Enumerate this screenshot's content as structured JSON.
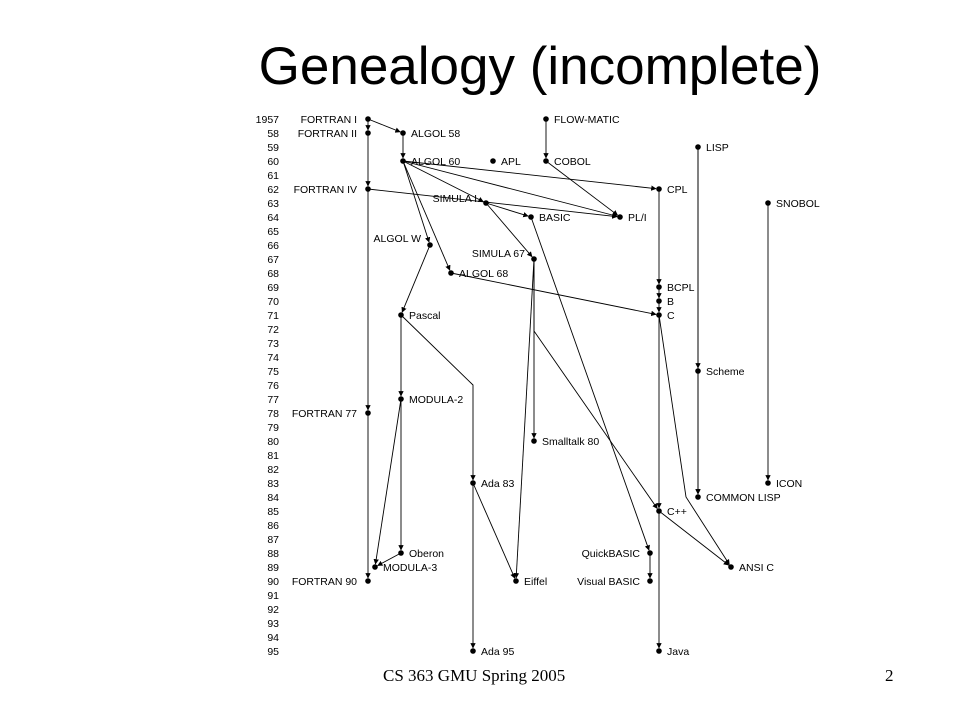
{
  "slide": {
    "title": "Genealogy (incomplete)",
    "footer": "CS 363 GMU Spring 2005",
    "page_number": "2"
  },
  "timeline": {
    "first_year_label": "1957",
    "short_year_labels": [
      "58",
      "59",
      "60",
      "61",
      "62",
      "63",
      "64",
      "65",
      "66",
      "67",
      "68",
      "69",
      "70",
      "71",
      "72",
      "73",
      "74",
      "75",
      "76",
      "77",
      "78",
      "79",
      "80",
      "81",
      "82",
      "83",
      "84",
      "85",
      "86",
      "87",
      "88",
      "89",
      "90",
      "91",
      "92",
      "93",
      "94",
      "95"
    ]
  },
  "languages": [
    {
      "id": "fortran1",
      "name": "FORTRAN I",
      "year": 1957
    },
    {
      "id": "fortran2",
      "name": "FORTRAN II",
      "year": 1958
    },
    {
      "id": "algol58",
      "name": "ALGOL 58",
      "year": 1958
    },
    {
      "id": "flowmatic",
      "name": "FLOW-MATIC",
      "year": 1957
    },
    {
      "id": "lisp",
      "name": "LISP",
      "year": 1959
    },
    {
      "id": "algol60",
      "name": "ALGOL 60",
      "year": 1960
    },
    {
      "id": "apl",
      "name": "APL",
      "year": 1960
    },
    {
      "id": "cobol",
      "name": "COBOL",
      "year": 1960
    },
    {
      "id": "fortran4",
      "name": "FORTRAN IV",
      "year": 1962
    },
    {
      "id": "cpl",
      "name": "CPL",
      "year": 1962
    },
    {
      "id": "simula1",
      "name": "SIMULA I",
      "year": 1963
    },
    {
      "id": "basic",
      "name": "BASIC",
      "year": 1964
    },
    {
      "id": "pl1",
      "name": "PL/I",
      "year": 1964
    },
    {
      "id": "snobol",
      "name": "SNOBOL",
      "year": 1963
    },
    {
      "id": "algolw",
      "name": "ALGOL W",
      "year": 1966
    },
    {
      "id": "simula67",
      "name": "SIMULA 67",
      "year": 1967
    },
    {
      "id": "algol68",
      "name": "ALGOL 68",
      "year": 1968
    },
    {
      "id": "bcpl",
      "name": "BCPL",
      "year": 1969
    },
    {
      "id": "b",
      "name": "B",
      "year": 1970
    },
    {
      "id": "pascal",
      "name": "Pascal",
      "year": 1971
    },
    {
      "id": "c",
      "name": "C",
      "year": 1971
    },
    {
      "id": "scheme",
      "name": "Scheme",
      "year": 1975
    },
    {
      "id": "modula2",
      "name": "MODULA-2",
      "year": 1977
    },
    {
      "id": "fortran77",
      "name": "FORTRAN 77",
      "year": 1978
    },
    {
      "id": "smalltalk80",
      "name": "Smalltalk 80",
      "year": 1980
    },
    {
      "id": "ada83",
      "name": "Ada 83",
      "year": 1983
    },
    {
      "id": "icon",
      "name": "ICON",
      "year": 1983
    },
    {
      "id": "commonlisp",
      "name": "COMMON LISP",
      "year": 1984
    },
    {
      "id": "cpp",
      "name": "C++",
      "year": 1985
    },
    {
      "id": "oberon",
      "name": "Oberon",
      "year": 1988
    },
    {
      "id": "quickbasic",
      "name": "QuickBASIC",
      "year": 1988
    },
    {
      "id": "modula3",
      "name": "MODULA-3",
      "year": 1989
    },
    {
      "id": "ansic",
      "name": "ANSI C",
      "year": 1989
    },
    {
      "id": "fortran90",
      "name": "FORTRAN 90",
      "year": 1990
    },
    {
      "id": "eiffel",
      "name": "Eiffel",
      "year": 1990
    },
    {
      "id": "visualbasic",
      "name": "Visual BASIC",
      "year": 1990
    },
    {
      "id": "ada95",
      "name": "Ada 95",
      "year": 1995
    },
    {
      "id": "java",
      "name": "Java",
      "year": 1995
    }
  ],
  "edges": [
    [
      "fortran1",
      "fortran2"
    ],
    [
      "fortran1",
      "algol58"
    ],
    [
      "fortran2",
      "fortran4"
    ],
    [
      "algol58",
      "algol60"
    ],
    [
      "flowmatic",
      "cobol"
    ],
    [
      "lisp",
      "scheme"
    ],
    [
      "lisp",
      "commonlisp"
    ],
    [
      "algol60",
      "simula1"
    ],
    [
      "algol60",
      "algolw"
    ],
    [
      "algol60",
      "algol68"
    ],
    [
      "algol60",
      "pl1"
    ],
    [
      "algol60",
      "cpl"
    ],
    [
      "fortran4",
      "pl1"
    ],
    [
      "fortran4",
      "fortran77"
    ],
    [
      "cobol",
      "pl1"
    ],
    [
      "cpl",
      "bcpl"
    ],
    [
      "bcpl",
      "b"
    ],
    [
      "b",
      "c"
    ],
    [
      "simula1",
      "simula67"
    ],
    [
      "simula1",
      "basic"
    ],
    [
      "basic",
      "quickbasic"
    ],
    [
      "snobol",
      "icon"
    ],
    [
      "algolw",
      "pascal"
    ],
    [
      "algol68",
      "c"
    ],
    [
      "pascal",
      "modula2"
    ],
    [
      "pascal",
      "ada83"
    ],
    [
      "simula67",
      "smalltalk80"
    ],
    [
      "simula67",
      "eiffel"
    ],
    [
      "simula67",
      "cpp"
    ],
    [
      "modula2",
      "oberon"
    ],
    [
      "modula2",
      "modula3"
    ],
    [
      "fortran77",
      "fortran90"
    ],
    [
      "ada83",
      "eiffel"
    ],
    [
      "ada83",
      "ada95"
    ],
    [
      "c",
      "cpp"
    ],
    [
      "c",
      "ansic"
    ],
    [
      "scheme",
      "commonlisp"
    ],
    [
      "cpp",
      "ansic"
    ],
    [
      "cpp",
      "java"
    ],
    [
      "oberon",
      "modula3"
    ],
    [
      "quickbasic",
      "visualbasic"
    ]
  ]
}
